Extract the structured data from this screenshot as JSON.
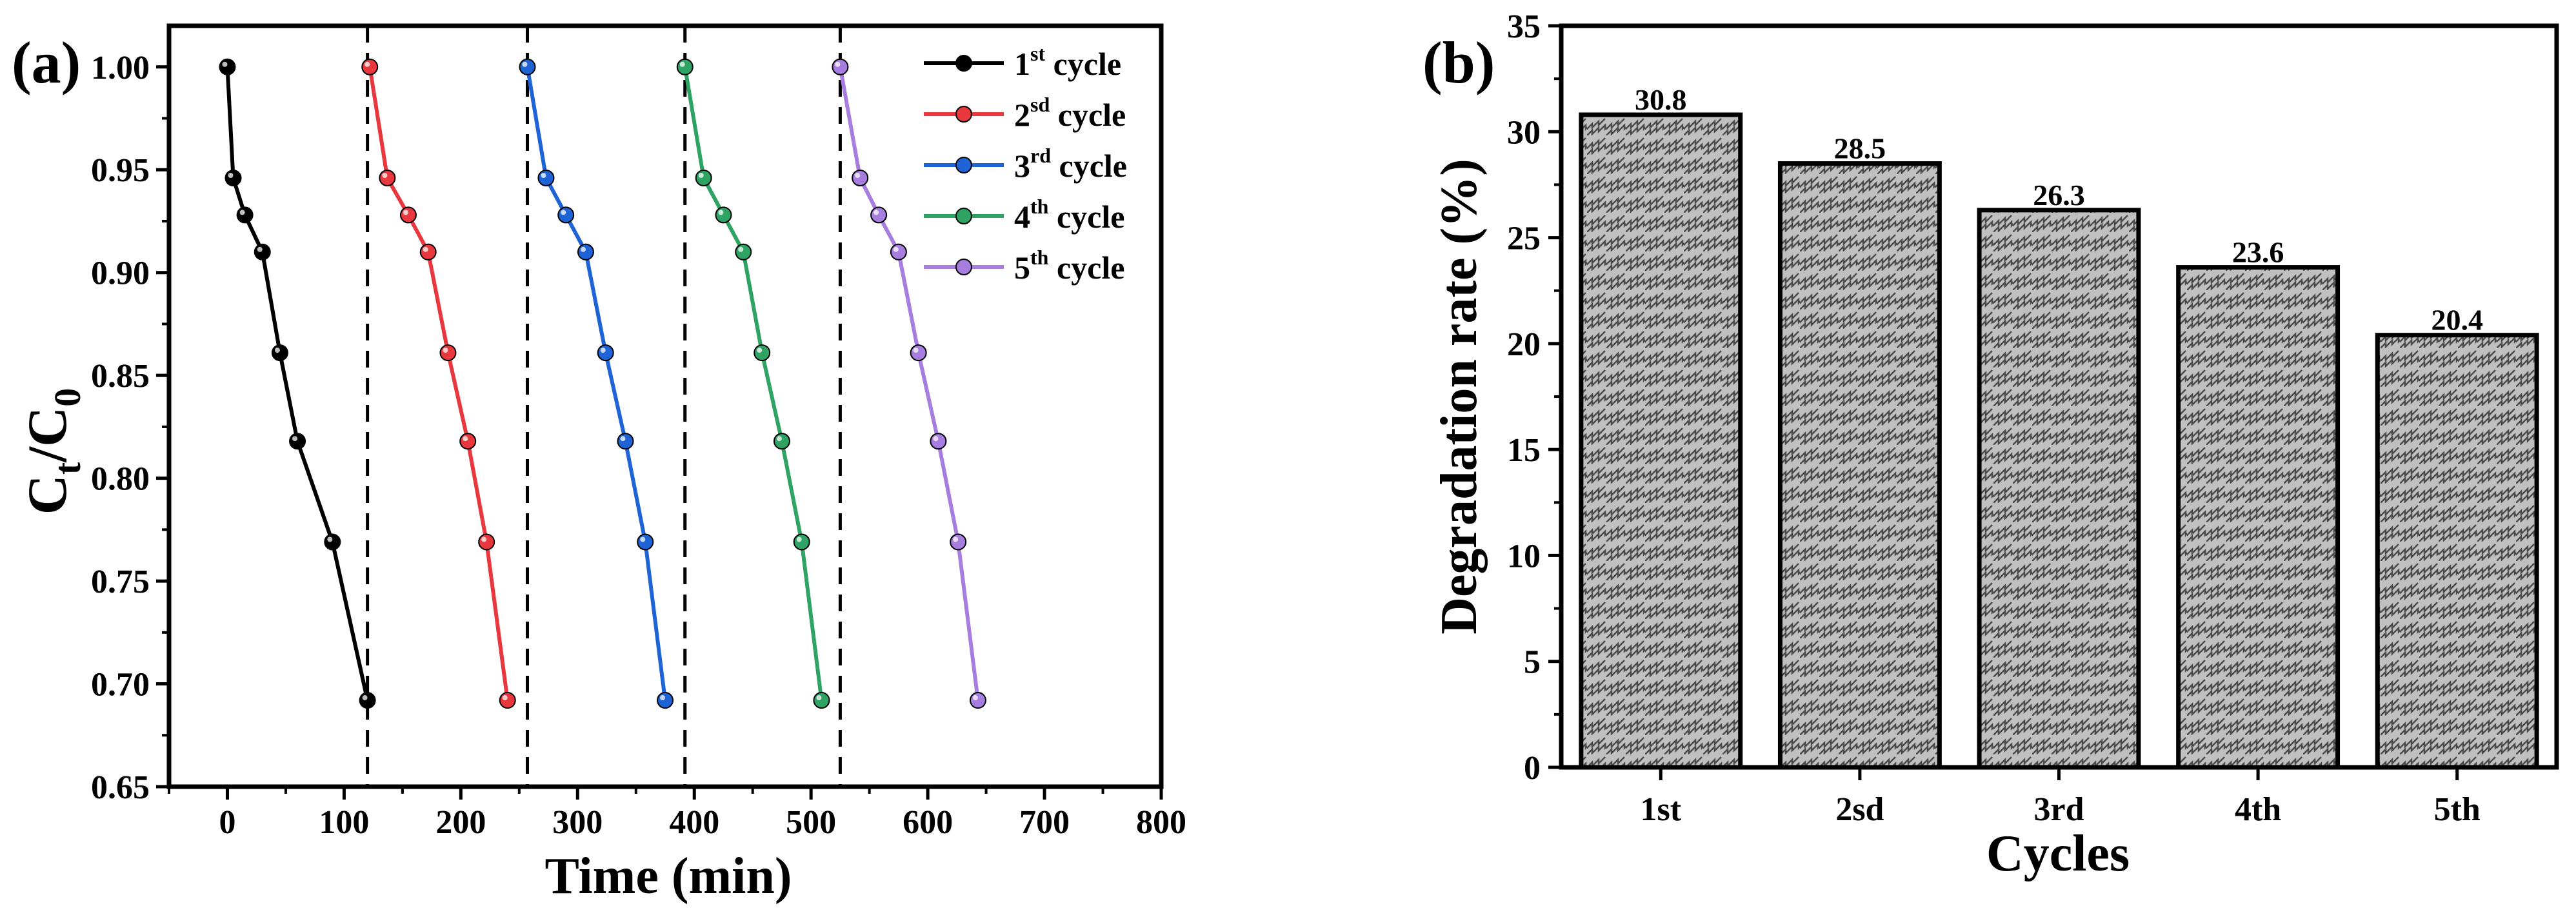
{
  "chart_data": [
    {
      "type": "line",
      "panel_label": "(a)",
      "xlabel": "Time (min)",
      "ylabel": {
        "main": "C",
        "sub1": "t",
        "mid": "/C",
        "sub2": "0"
      },
      "xlim": [
        -50,
        800
      ],
      "ylim": [
        0.65,
        1.02
      ],
      "xticks": [
        0,
        100,
        200,
        300,
        400,
        500,
        600,
        700,
        800
      ],
      "yticks": [
        0.65,
        0.7,
        0.75,
        0.8,
        0.85,
        0.9,
        0.95,
        1.0
      ],
      "ytick_labels": [
        "0.65",
        "0.70",
        "0.75",
        "0.80",
        "0.85",
        "0.90",
        "0.95",
        "1.00"
      ],
      "vlines": [
        120,
        257,
        392,
        525
      ],
      "series": [
        {
          "name": "1st cycle",
          "legend_num": "1",
          "legend_sup": "st",
          "legend_text": " cycle",
          "color": "#000000",
          "x": [
            0,
            5,
            15,
            30,
            45,
            60,
            90,
            120
          ],
          "y": [
            1.0,
            0.946,
            0.928,
            0.91,
            0.861,
            0.818,
            0.769,
            0.692
          ]
        },
        {
          "name": "2sd cycle",
          "legend_num": "2",
          "legend_sup": "sd",
          "legend_text": " cycle",
          "color": "#e8383d",
          "x": [
            122,
            137,
            155,
            172,
            189,
            206,
            222,
            240
          ],
          "y": [
            1.0,
            0.946,
            0.928,
            0.91,
            0.861,
            0.818,
            0.769,
            0.692
          ]
        },
        {
          "name": "3rd cycle",
          "legend_num": "3",
          "legend_sup": "rd",
          "legend_text": " cycle",
          "color": "#1f64d6",
          "x": [
            257,
            273,
            290,
            307,
            324,
            341,
            358,
            375
          ],
          "y": [
            1.0,
            0.946,
            0.928,
            0.91,
            0.861,
            0.818,
            0.769,
            0.692
          ]
        },
        {
          "name": "4th cycle",
          "legend_num": "4",
          "legend_sup": "th",
          "legend_text": " cycle",
          "color": "#2ea363",
          "x": [
            392,
            408,
            425,
            442,
            458,
            475,
            492,
            509
          ],
          "y": [
            1.0,
            0.946,
            0.928,
            0.91,
            0.861,
            0.818,
            0.769,
            0.692
          ]
        },
        {
          "name": "5th cycle",
          "legend_num": "5",
          "legend_sup": "th",
          "legend_text": " cycle",
          "color": "#a77de0",
          "x": [
            525,
            542,
            558,
            575,
            592,
            609,
            626,
            643
          ],
          "y": [
            1.0,
            0.946,
            0.928,
            0.91,
            0.861,
            0.818,
            0.769,
            0.692
          ]
        }
      ]
    },
    {
      "type": "bar",
      "panel_label": "(b)",
      "xlabel": "Cycles",
      "ylabel": "Degradation rate (%)",
      "categories": [
        "1st",
        "2sd",
        "3rd",
        "4th",
        "5th"
      ],
      "values": [
        30.8,
        28.5,
        26.3,
        23.6,
        20.4
      ],
      "value_labels": [
        "30.8",
        "28.5",
        "26.3",
        "23.6",
        "20.4"
      ],
      "ylim": [
        0,
        35
      ],
      "yticks": [
        0,
        5,
        10,
        15,
        20,
        25,
        30,
        35
      ],
      "fill_pattern": "zigzag-hatch",
      "bar_fill": "#c0c0c0"
    }
  ]
}
